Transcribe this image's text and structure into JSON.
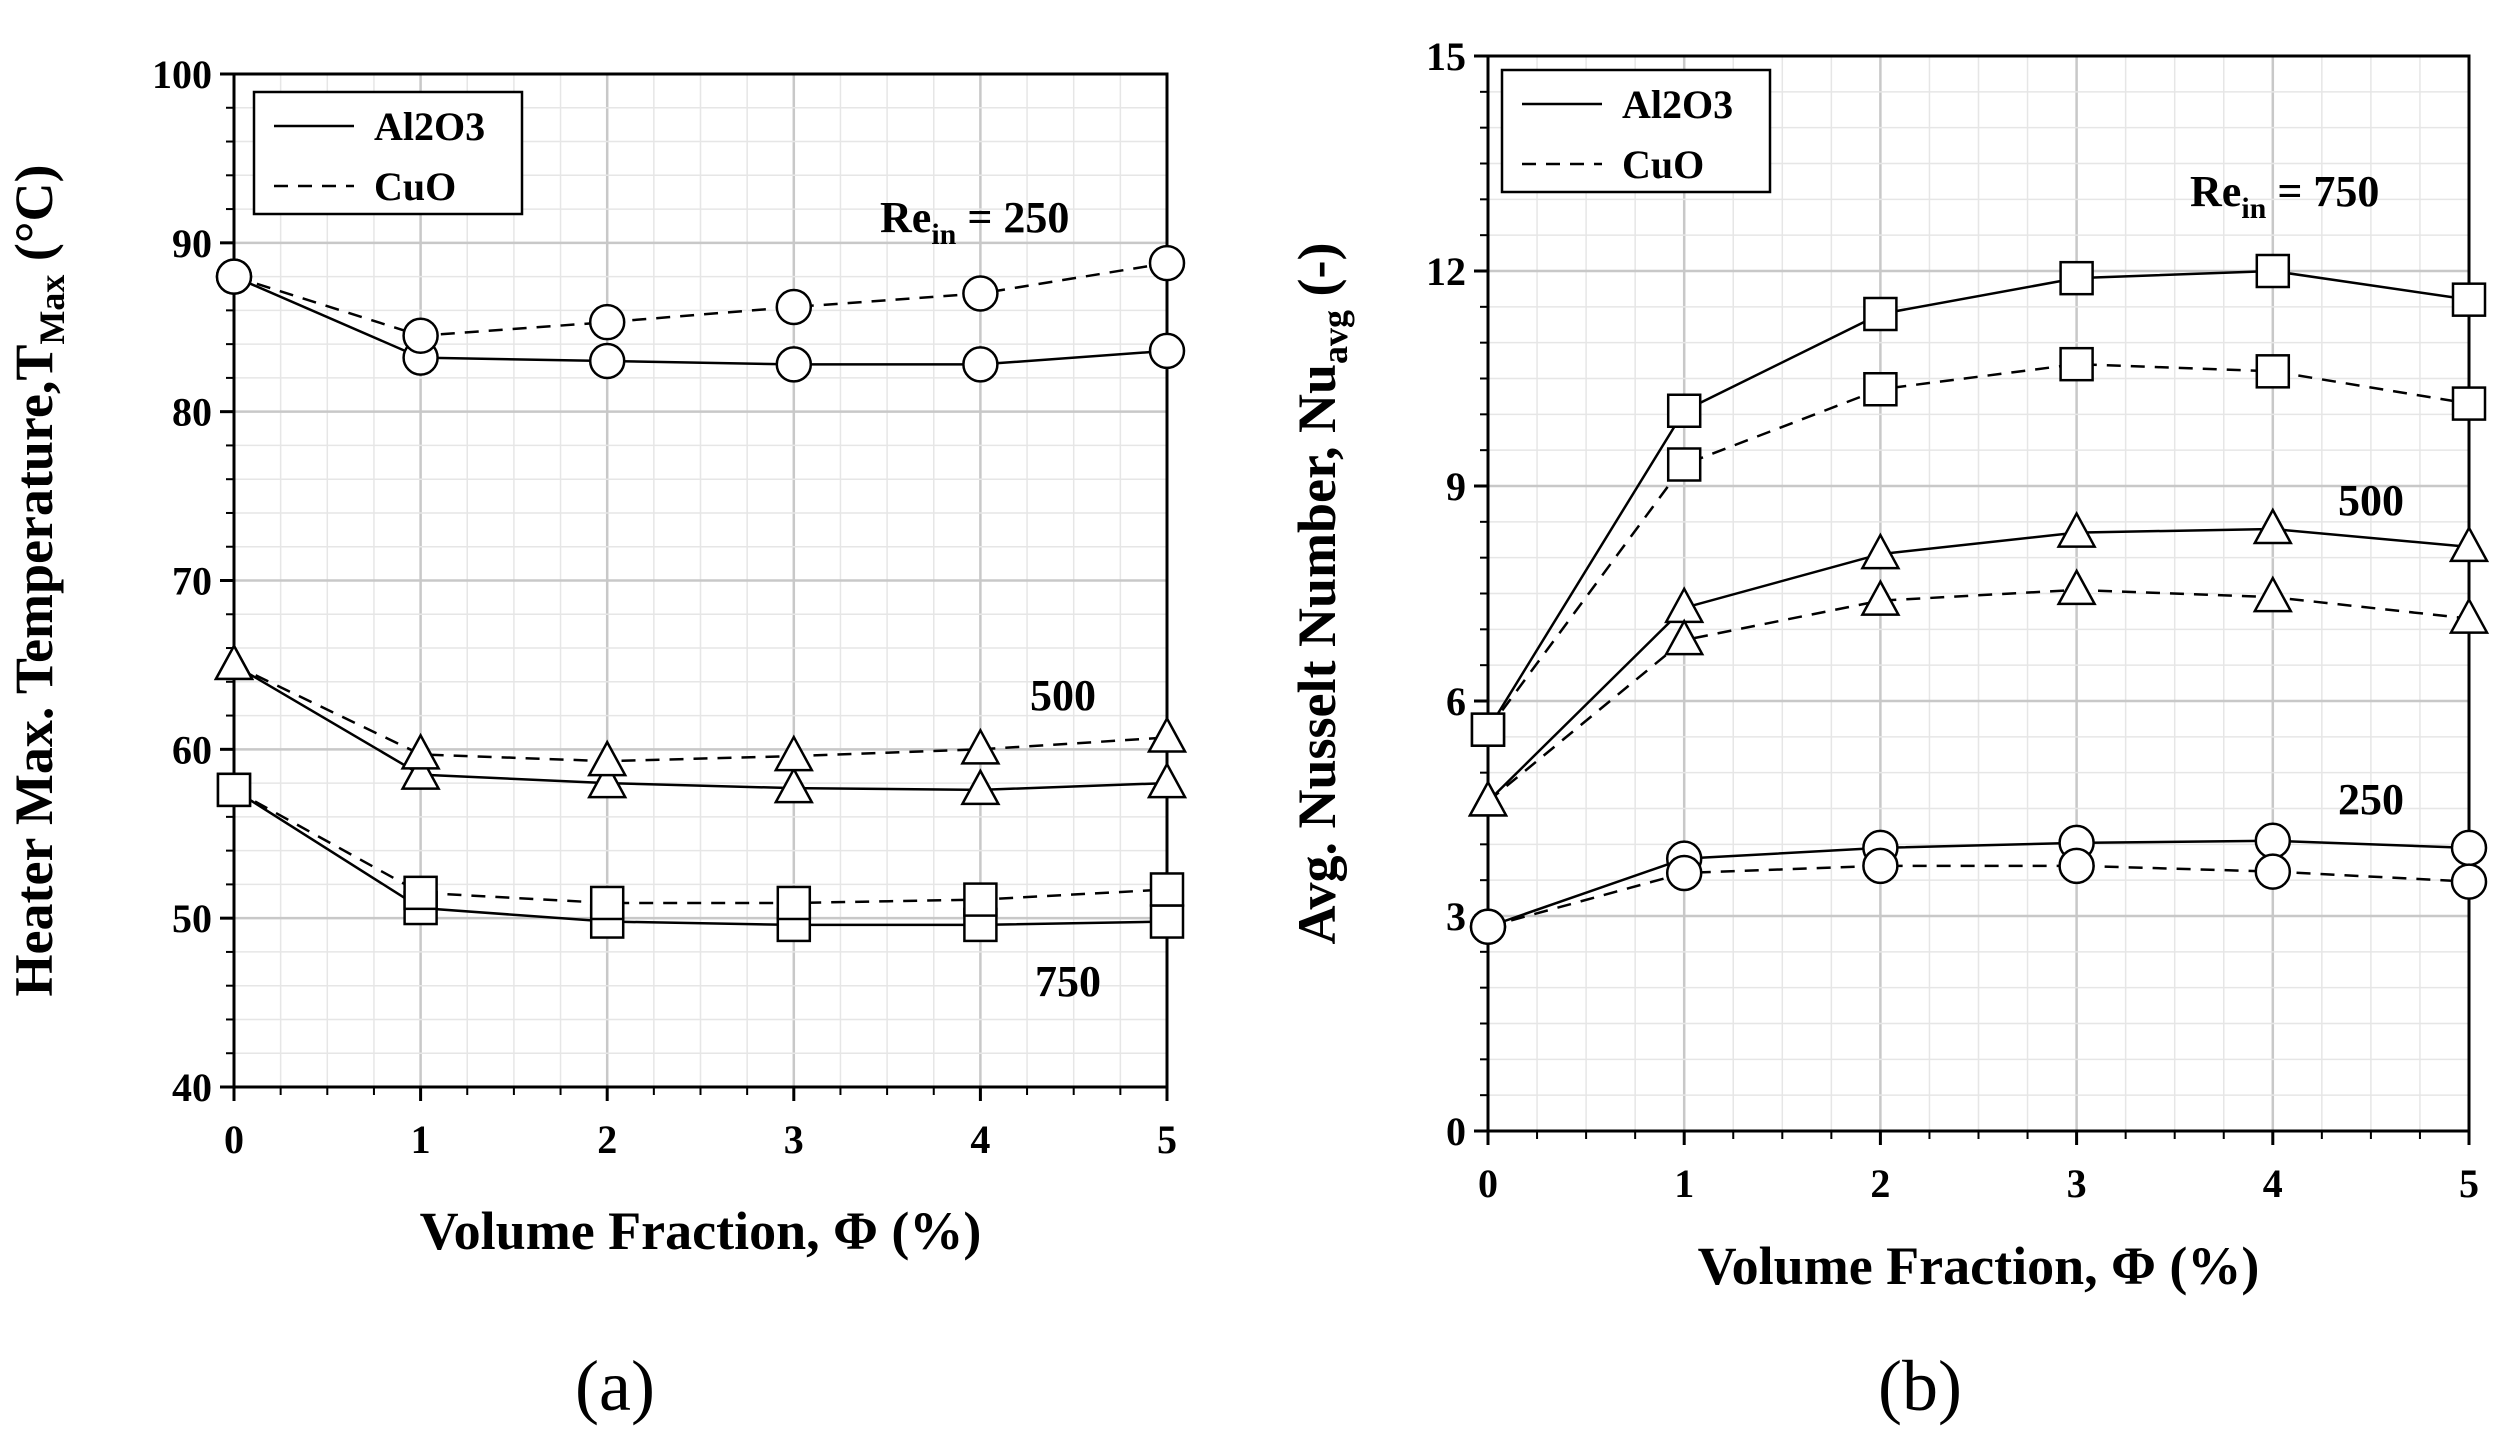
{
  "chart_data": [
    {
      "type": "line",
      "panel_label": "(a)",
      "xlabel": "Volume Fraction, Φ (%)",
      "ylabel": {
        "main": "Heater Max. Temperature,T",
        "sub": "Max",
        "unit": " (°C)"
      },
      "x": [
        0,
        1,
        2,
        3,
        4,
        5
      ],
      "xlim": [
        0,
        5
      ],
      "ylim": [
        40,
        100
      ],
      "xticks": [
        "0",
        "1",
        "2",
        "3",
        "4",
        "5"
      ],
      "yticks": [
        "40",
        "50",
        "60",
        "70",
        "80",
        "90",
        "100"
      ],
      "grid": true,
      "legend": {
        "placement": "top-left",
        "entries": [
          {
            "label": "Al2O3",
            "style": "solid"
          },
          {
            "label": "CuO",
            "style": "dashed"
          }
        ]
      },
      "annotations": [
        {
          "id": "re250",
          "main": "Re",
          "sub": "in",
          "rest": " = 250"
        },
        {
          "id": "re500",
          "text": "500"
        },
        {
          "id": "re750",
          "text": "750"
        }
      ],
      "series": [
        {
          "name": "Al2O3 Re=250",
          "fluid": "Al2O3",
          "Re": 250,
          "marker": "circle",
          "values": [
            88,
            83.2,
            83,
            82.8,
            82.8,
            83.6
          ]
        },
        {
          "name": "CuO Re=250",
          "fluid": "CuO",
          "Re": 250,
          "marker": "circle",
          "values": [
            88,
            84.5,
            85.3,
            86.2,
            87,
            88.8
          ]
        },
        {
          "name": "Al2O3 Re=500",
          "fluid": "Al2O3",
          "Re": 500,
          "marker": "triangle",
          "values": [
            65,
            58.5,
            58,
            57.7,
            57.6,
            58
          ]
        },
        {
          "name": "CuO Re=500",
          "fluid": "CuO",
          "Re": 500,
          "marker": "triangle",
          "values": [
            65,
            59.7,
            59.3,
            59.6,
            60,
            60.7
          ]
        },
        {
          "name": "Al2O3 Re=750",
          "fluid": "Al2O3",
          "Re": 750,
          "marker": "square",
          "values": [
            57.6,
            50.6,
            49.8,
            49.6,
            49.6,
            49.8
          ]
        },
        {
          "name": "CuO Re=750",
          "fluid": "CuO",
          "Re": 750,
          "marker": "square",
          "values": [
            57.6,
            51.5,
            50.9,
            50.9,
            51.1,
            51.7
          ]
        }
      ]
    },
    {
      "type": "line",
      "panel_label": "(b)",
      "xlabel": "Volume Fraction, Φ (%)",
      "ylabel": {
        "main": "Avg. Nusselt Number, Nu",
        "sub": "avg",
        "unit": " (-)"
      },
      "x": [
        0,
        1,
        2,
        3,
        4,
        5
      ],
      "xlim": [
        0,
        5
      ],
      "ylim": [
        0,
        15
      ],
      "xticks": [
        "0",
        "1",
        "2",
        "3",
        "4",
        "5"
      ],
      "yticks": [
        "0",
        "3",
        "6",
        "9",
        "12",
        "15"
      ],
      "grid": true,
      "legend": {
        "placement": "top-left",
        "entries": [
          {
            "label": "Al2O3",
            "style": "solid"
          },
          {
            "label": "CuO",
            "style": "dashed"
          }
        ]
      },
      "annotations": [
        {
          "id": "re750",
          "main": "Re",
          "sub": "in",
          "rest": " = 750"
        },
        {
          "id": "re500",
          "text": "500"
        },
        {
          "id": "re250",
          "text": "250"
        }
      ],
      "series": [
        {
          "name": "Al2O3 Re=750",
          "fluid": "Al2O3",
          "Re": 750,
          "marker": "square",
          "values": [
            5.6,
            10.05,
            11.4,
            11.9,
            12,
            11.6
          ]
        },
        {
          "name": "CuO Re=750",
          "fluid": "CuO",
          "Re": 750,
          "marker": "square",
          "values": [
            5.6,
            9.3,
            10.35,
            10.7,
            10.6,
            10.15
          ]
        },
        {
          "name": "Al2O3 Re=500",
          "fluid": "Al2O3",
          "Re": 500,
          "marker": "triangle",
          "values": [
            4.6,
            7.3,
            8.05,
            8.35,
            8.4,
            8.15
          ]
        },
        {
          "name": "CuO Re=500",
          "fluid": "CuO",
          "Re": 500,
          "marker": "triangle",
          "values": [
            4.6,
            6.85,
            7.4,
            7.55,
            7.45,
            7.15
          ]
        },
        {
          "name": "Al2O3 Re=250",
          "fluid": "Al2O3",
          "Re": 250,
          "marker": "circle",
          "values": [
            2.85,
            3.8,
            3.95,
            4.02,
            4.05,
            3.95
          ]
        },
        {
          "name": "CuO Re=250",
          "fluid": "CuO",
          "Re": 250,
          "marker": "circle",
          "values": [
            2.85,
            3.6,
            3.7,
            3.7,
            3.62,
            3.48
          ]
        }
      ]
    }
  ]
}
